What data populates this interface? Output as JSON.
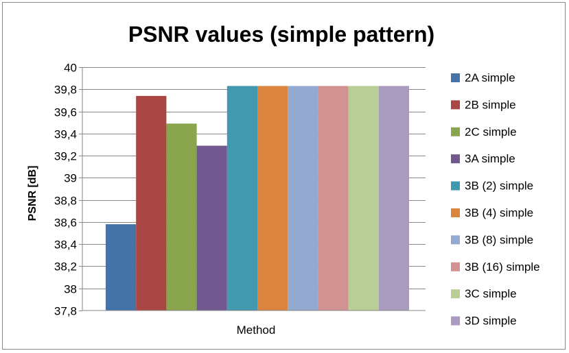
{
  "chart_data": {
    "type": "bar",
    "title": "PSNR values (simple pattern)",
    "xlabel": "Method",
    "ylabel": "PSNR [dB]",
    "ylim": [
      37.8,
      40
    ],
    "yticks": [
      "37,8",
      "38",
      "38,2",
      "38,4",
      "38,6",
      "38,8",
      "39",
      "39,2",
      "39,4",
      "39,6",
      "39,8",
      "40"
    ],
    "grid": true,
    "legend_position": "right",
    "series": [
      {
        "name": "2A simple",
        "value": 38.58,
        "color": "#4572A7"
      },
      {
        "name": "2B simple",
        "value": 39.74,
        "color": "#AA4643"
      },
      {
        "name": "2C simple",
        "value": 39.49,
        "color": "#89A54E"
      },
      {
        "name": "3A simple",
        "value": 39.29,
        "color": "#71588F"
      },
      {
        "name": "3B (2) simple",
        "value": 39.83,
        "color": "#4198AF"
      },
      {
        "name": "3B (4) simple",
        "value": 39.83,
        "color": "#DB843D"
      },
      {
        "name": "3B (8) simple",
        "value": 39.83,
        "color": "#93A9CF"
      },
      {
        "name": "3B (16) simple",
        "value": 39.83,
        "color": "#D19392"
      },
      {
        "name": "3C simple",
        "value": 39.83,
        "color": "#B9CD96"
      },
      {
        "name": "3D simple",
        "value": 39.83,
        "color": "#A99BBD"
      }
    ]
  }
}
